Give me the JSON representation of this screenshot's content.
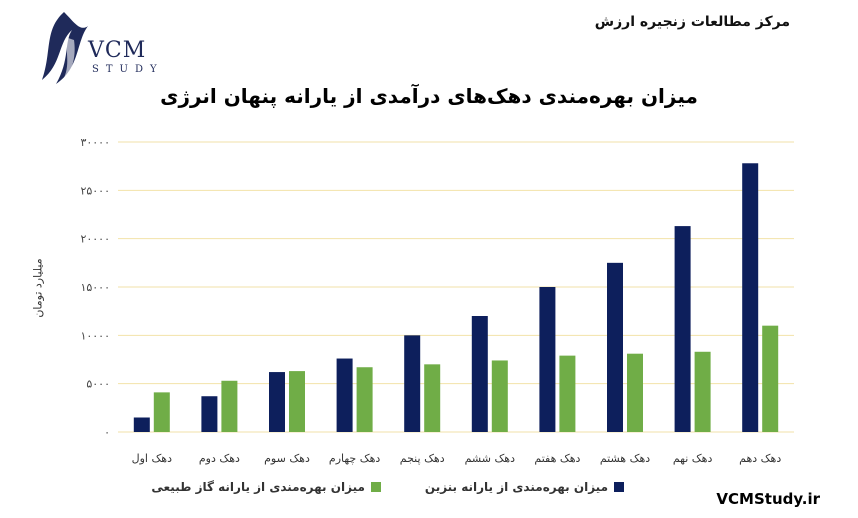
{
  "header": {
    "org": "مرکز مطالعات زنجیره ارزش",
    "logo_text": "VCM",
    "logo_sub": "STUDY",
    "website": "VCMStudy.ir"
  },
  "colors": {
    "gasoline": "#0d1f5c",
    "gas": "#70ad47",
    "grid": "#f2e2a8"
  },
  "chart_data": {
    "type": "bar",
    "title": "میزان بهره‌مندی دهک‌های درآمدی از یارانه پنهان انرژی",
    "ylabel": "میلیارد تومان",
    "xlabel": "",
    "ylim": [
      0,
      30000
    ],
    "yticks": [
      "۰",
      "۵۰۰۰",
      "۱۰۰۰۰",
      "۱۵۰۰۰",
      "۲۰۰۰۰",
      "۲۵۰۰۰",
      "۳۰۰۰۰"
    ],
    "ytick_values": [
      0,
      5000,
      10000,
      15000,
      20000,
      25000,
      30000
    ],
    "grid": true,
    "legend_position": "bottom",
    "categories": [
      "دهک اول",
      "دهک دوم",
      "دهک سوم",
      "دهک چهارم",
      "دهک پنجم",
      "دهک ششم",
      "دهک هفتم",
      "دهک هشتم",
      "دهک نهم",
      "دهک دهم"
    ],
    "series": [
      {
        "name": "میزان بهره‌مندی از یارانه بنزین",
        "values": [
          1500,
          3700,
          6200,
          7600,
          10000,
          12000,
          15000,
          17500,
          21300,
          27800
        ]
      },
      {
        "name": "میزان بهره‌مندی از یارانه گاز طبیعی",
        "values": [
          4100,
          5300,
          6300,
          6700,
          7000,
          7400,
          7900,
          8100,
          8300,
          11000
        ]
      }
    ]
  }
}
